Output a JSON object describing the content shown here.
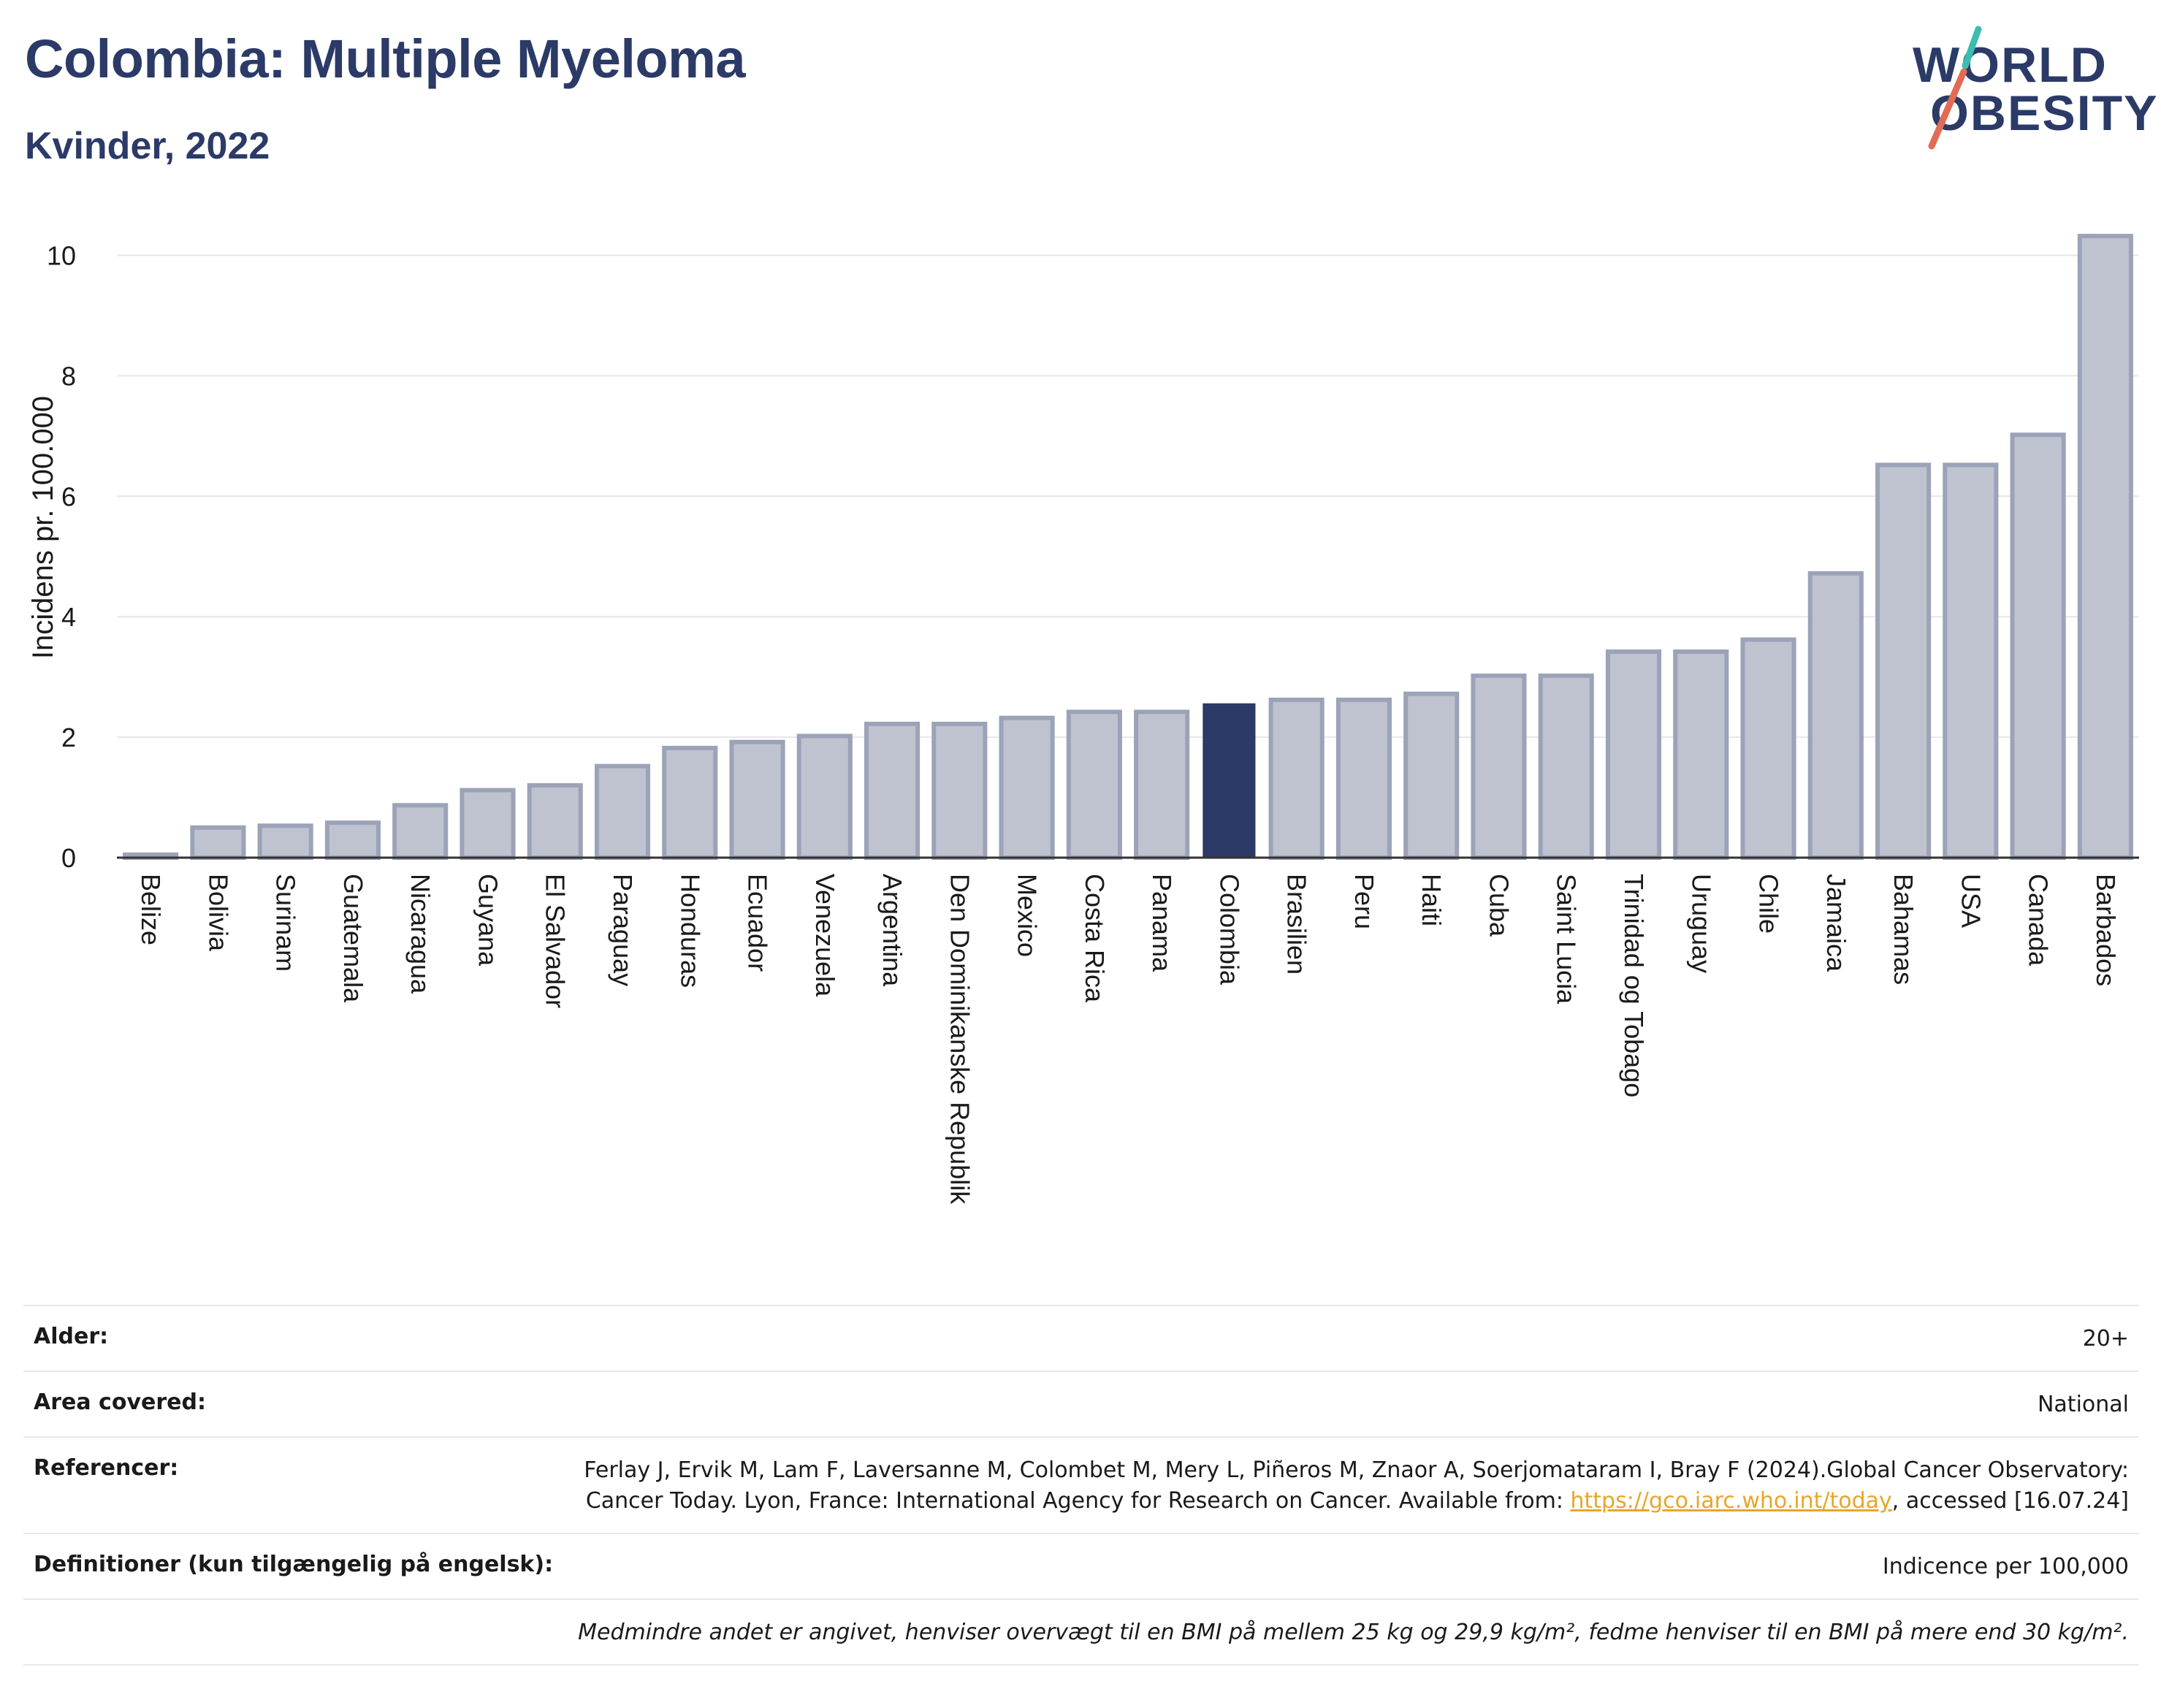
{
  "header": {
    "title": "Colombia: Multiple Myeloma",
    "subtitle": "Kvinder, 2022"
  },
  "logo": {
    "line1": "WORLD",
    "line2": "OBESITY",
    "slash_colors": [
      "#3dbdb2",
      "#e36b55"
    ]
  },
  "chart_data": {
    "type": "bar",
    "ylabel": "Incidens pr. 100.000",
    "ylim": [
      0,
      10.6
    ],
    "yticks": [
      0,
      2,
      4,
      6,
      8,
      10
    ],
    "grid": true,
    "highlight": "Colombia",
    "colors": {
      "bar_fill": "#bfc3d0",
      "bar_stroke": "#9ca3b8",
      "highlight_fill": "#2b3a67",
      "grid": "#e6e6ec",
      "axis": "#333333"
    },
    "categories": [
      "Belize",
      "Bolivia",
      "Surinam",
      "Guatemala",
      "Nicaragua",
      "Guyana",
      "El Salvador",
      "Paraguay",
      "Honduras",
      "Ecuador",
      "Venezuela",
      "Argentina",
      "Den Dominikanske Republik",
      "Mexico",
      "Costa Rica",
      "Panama",
      "Colombia",
      "Brasilien",
      "Peru",
      "Haiti",
      "Cuba",
      "Saint Lucia",
      "Trinidad og Tobago",
      "Uruguay",
      "Chile",
      "Jamaica",
      "Bahamas",
      "USA",
      "Canada",
      "Barbados"
    ],
    "values": [
      0.05,
      0.5,
      0.53,
      0.58,
      0.87,
      1.12,
      1.2,
      1.52,
      1.82,
      1.92,
      2.02,
      2.22,
      2.22,
      2.32,
      2.42,
      2.42,
      2.55,
      2.62,
      2.62,
      2.72,
      3.02,
      3.02,
      3.42,
      3.42,
      3.62,
      4.72,
      6.52,
      6.52,
      7.02,
      10.32
    ]
  },
  "meta": {
    "age_label": "Alder:",
    "age_value": "20+",
    "area_label": "Area covered:",
    "area_value": "National",
    "ref_label": "Referencer:",
    "ref_text": "Ferlay J, Ervik M, Lam F, Laversanne M, Colombet M, Mery L, Piñeros M, Znaor A, Soerjomataram I, Bray F (2024).Global Cancer Observatory: Cancer Today. Lyon, France: International Agency for Research on Cancer. Available from: ",
    "ref_link": "https://gco.iarc.who.int/today",
    "ref_suffix": ", accessed [16.07.24]",
    "def_label": "Definitioner (kun tilgængelig på engelsk):",
    "def_value": "Indicence per 100,000",
    "note": "Medmindre andet er angivet, henviser overvægt til en BMI på mellem 25 kg og 29,9 kg/m², fedme henviser til en BMI på mere end 30 kg/m²."
  }
}
